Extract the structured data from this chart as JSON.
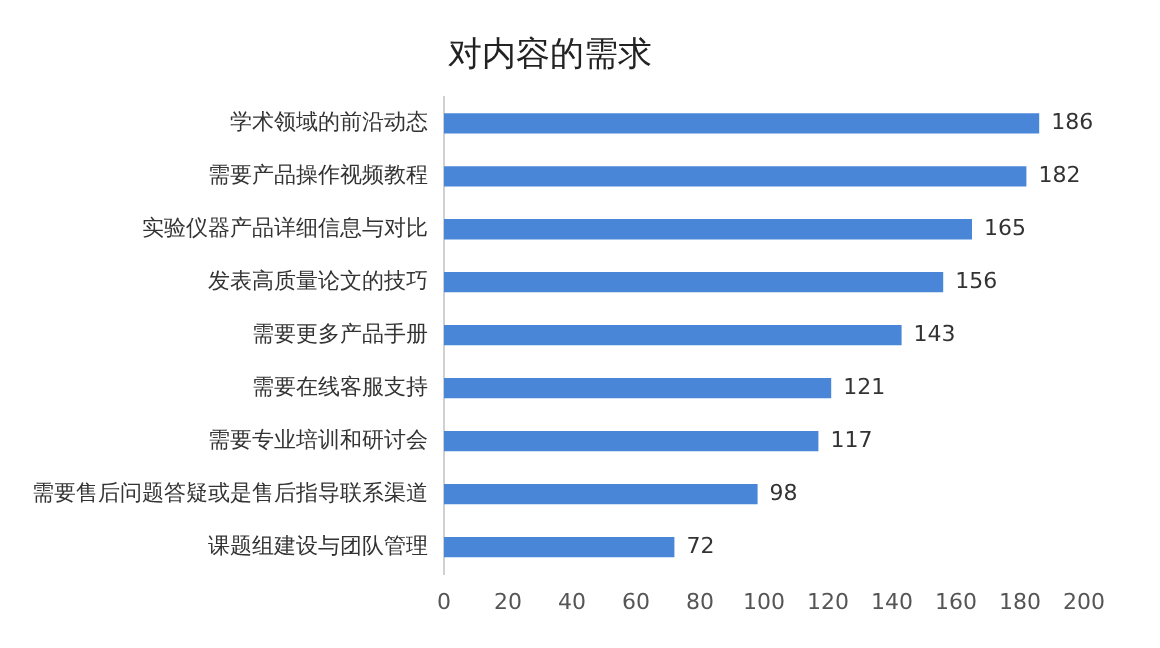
{
  "chart_data": {
    "type": "bar",
    "title": "对内容的需求",
    "orientation": "horizontal",
    "categories": [
      "学术领域的前沿动态",
      "需要产品操作视频教程",
      "实验仪器产品详细信息与对比",
      "发表高质量论文的技巧",
      "需要更多产品手册",
      "需要在线客服支持",
      "需要专业培训和研讨会",
      "需要售后问题答疑或是售后指导联系渠道",
      "课题组建设与团队管理"
    ],
    "values": [
      186,
      182,
      165,
      156,
      143,
      121,
      117,
      98,
      72
    ],
    "color": "#4a86d8",
    "xlim": [
      0,
      200
    ],
    "xticks": [
      0,
      20,
      40,
      60,
      80,
      100,
      120,
      140,
      160,
      180,
      200
    ],
    "grid": false,
    "data_labels": true,
    "legend": false
  }
}
